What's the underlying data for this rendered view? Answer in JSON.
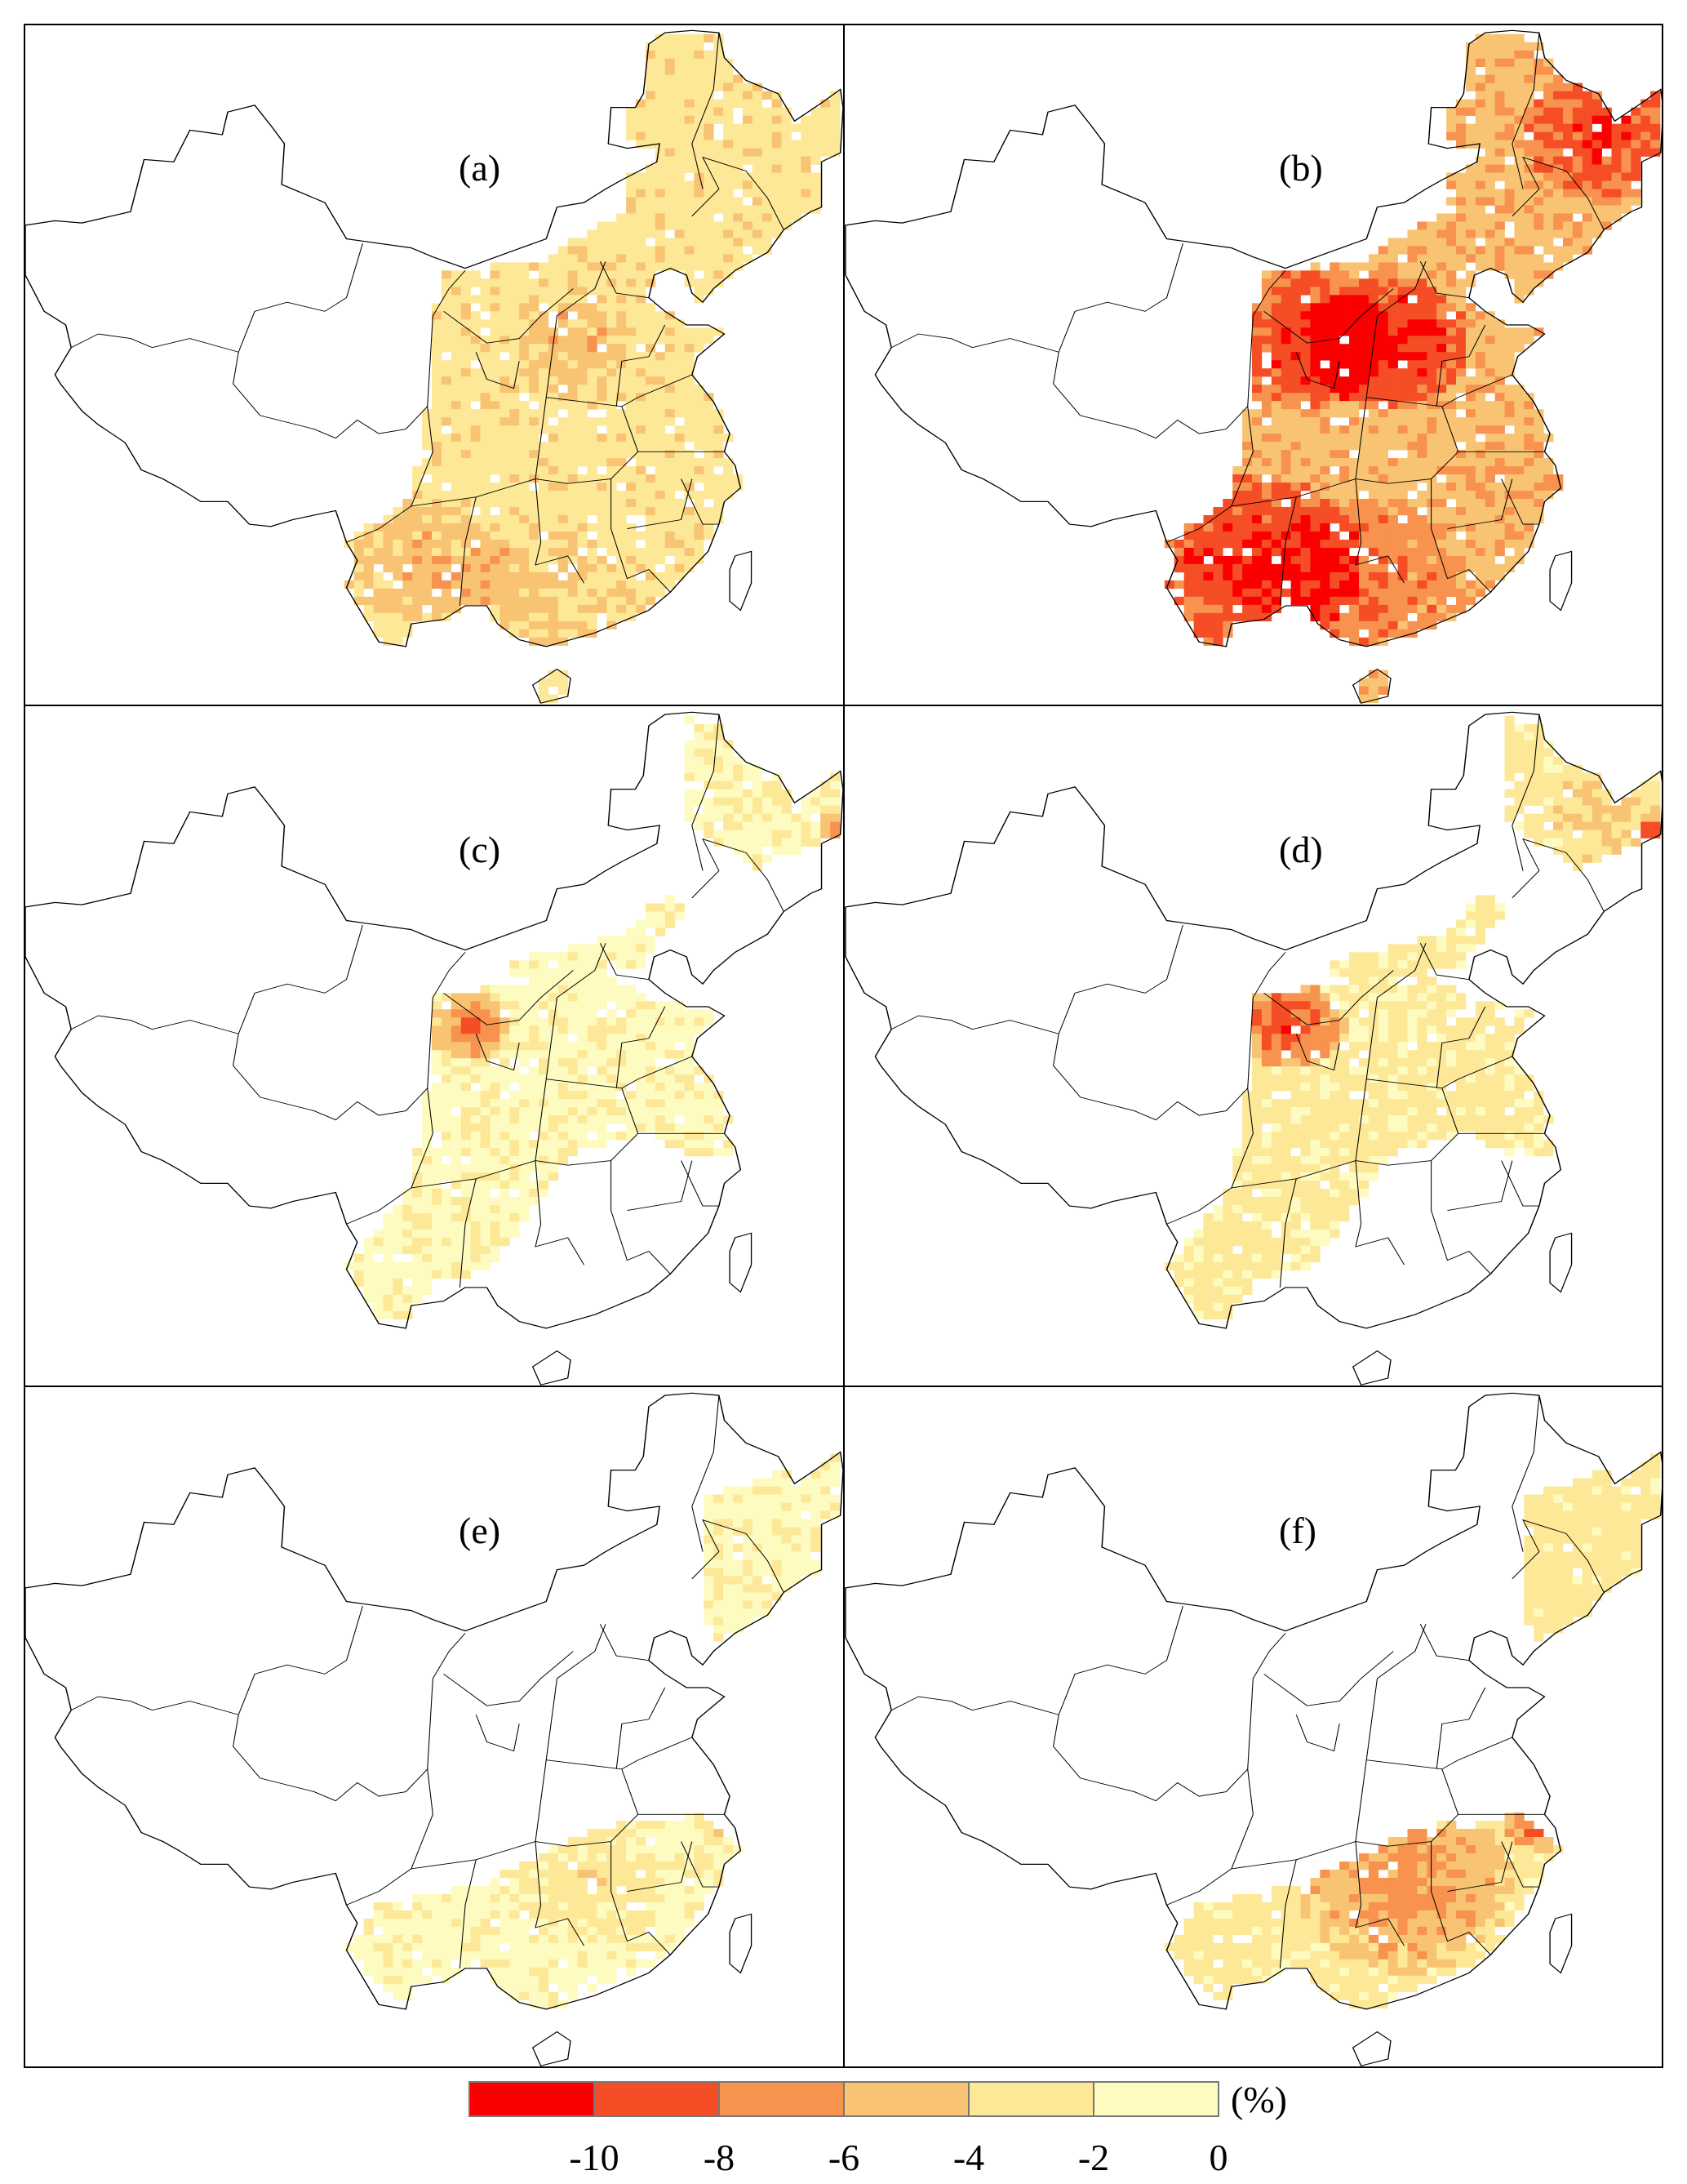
{
  "panels": [
    {
      "label": "(a)"
    },
    {
      "label": "(b)"
    },
    {
      "label": "(c)"
    },
    {
      "label": "(d)"
    },
    {
      "label": "(e)"
    },
    {
      "label": "(f)"
    }
  ],
  "legend": {
    "unit": "(%)",
    "ticks": [
      "-10",
      "-8",
      "-6",
      "-4",
      "-2",
      "0"
    ],
    "colors": [
      "#FA0000",
      "#F54D25",
      "#F8924F",
      "#F8C473",
      "#FDE897",
      "#FEFBC0"
    ]
  }
}
